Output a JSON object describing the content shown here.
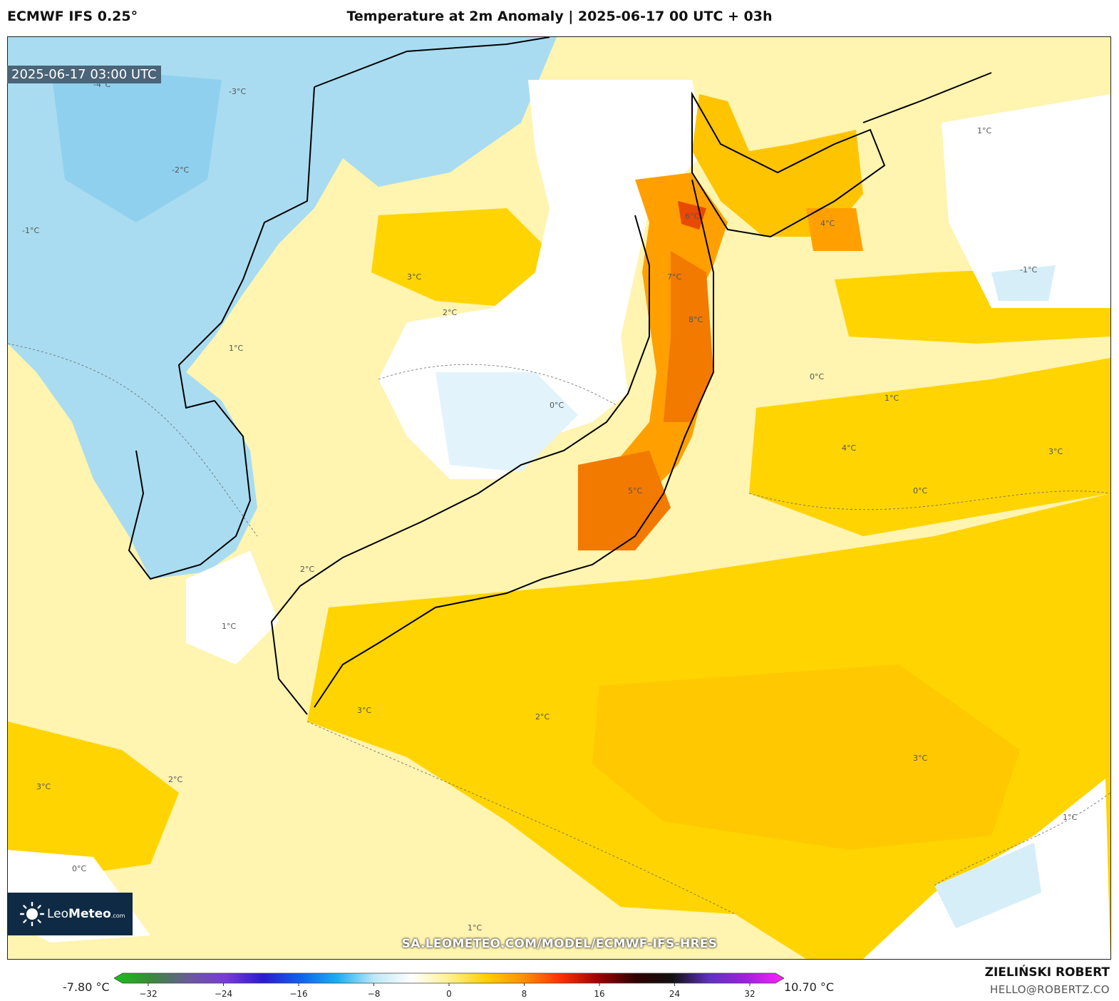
{
  "header": {
    "model": "ECMWF IFS 0.25°",
    "title": "Temperature at 2m Anomaly | 2025-06-17 00 UTC + 03h"
  },
  "map": {
    "valid_time": "2025-06-17 03:00 UTC",
    "website": "SA.LEOMETEO.COM/MODEL/ECMWF-IFS-HRES",
    "contour_labels": [
      "-4°C",
      "-3°C",
      "-2°C",
      "-1°C",
      "0°C",
      "1°C",
      "2°C",
      "3°C",
      "4°C",
      "5°C",
      "6°C",
      "7°C",
      "8°C"
    ]
  },
  "logo": {
    "prefix": "Leo",
    "bold": "Meteo",
    "suffix": ".com"
  },
  "colorbar": {
    "min_label": "-7.80 °C",
    "max_label": "10.70 °C",
    "ticks": [
      "−32",
      "−24",
      "−16",
      "−8",
      "0",
      "8",
      "16",
      "24",
      "32"
    ],
    "stops": [
      "#18c018",
      "#3a8a3a",
      "#6a5a9a",
      "#7a3ad8",
      "#2a1ad0",
      "#1060f0",
      "#18b0f0",
      "#bfe8f8",
      "#ffffff",
      "#fff090",
      "#ffd000",
      "#ff9000",
      "#ff3000",
      "#a00000",
      "#300000",
      "#101010",
      "#6030c0",
      "#a020e0",
      "#ff20ff"
    ]
  },
  "author": {
    "name": "ZIELIŃSKI ROBERT",
    "email": "HELLO@ROBERTZ.CO"
  },
  "colors": {
    "cold": "#a9dcf0",
    "neutral": "#ffffff",
    "warm": "#ffd400",
    "hot": "#f27a00",
    "frame": "#222222"
  }
}
